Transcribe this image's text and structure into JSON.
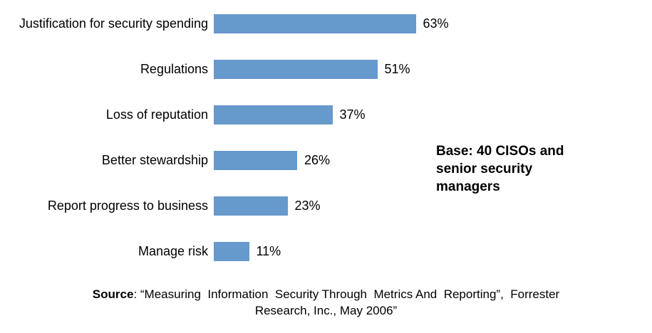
{
  "chart_data": {
    "type": "bar",
    "orientation": "horizontal",
    "title": "",
    "xlabel": "",
    "ylabel": "",
    "xlim": [
      0,
      70
    ],
    "grid": false,
    "bar_color": "#6699CC",
    "categories": [
      "Justification for security spending",
      "Regulations",
      "Loss of reputation",
      "Better stewardship",
      "Report progress to business",
      "Manage risk"
    ],
    "values": [
      63,
      51,
      37,
      26,
      23,
      11
    ],
    "value_labels": [
      "63%",
      "51%",
      "37%",
      "26%",
      "23%",
      "11%"
    ],
    "annotations": [
      "Base: 40 CISOs and senior security managers"
    ]
  },
  "annotation": {
    "base_note": "Base: 40 CISOs and\nsenior security\nmanagers"
  },
  "source": {
    "label": "Source",
    "text": ": “Measuring  Information  Security Through  Metrics And  Reporting”,  Forrester\nResearch, Inc., May 2006”"
  }
}
